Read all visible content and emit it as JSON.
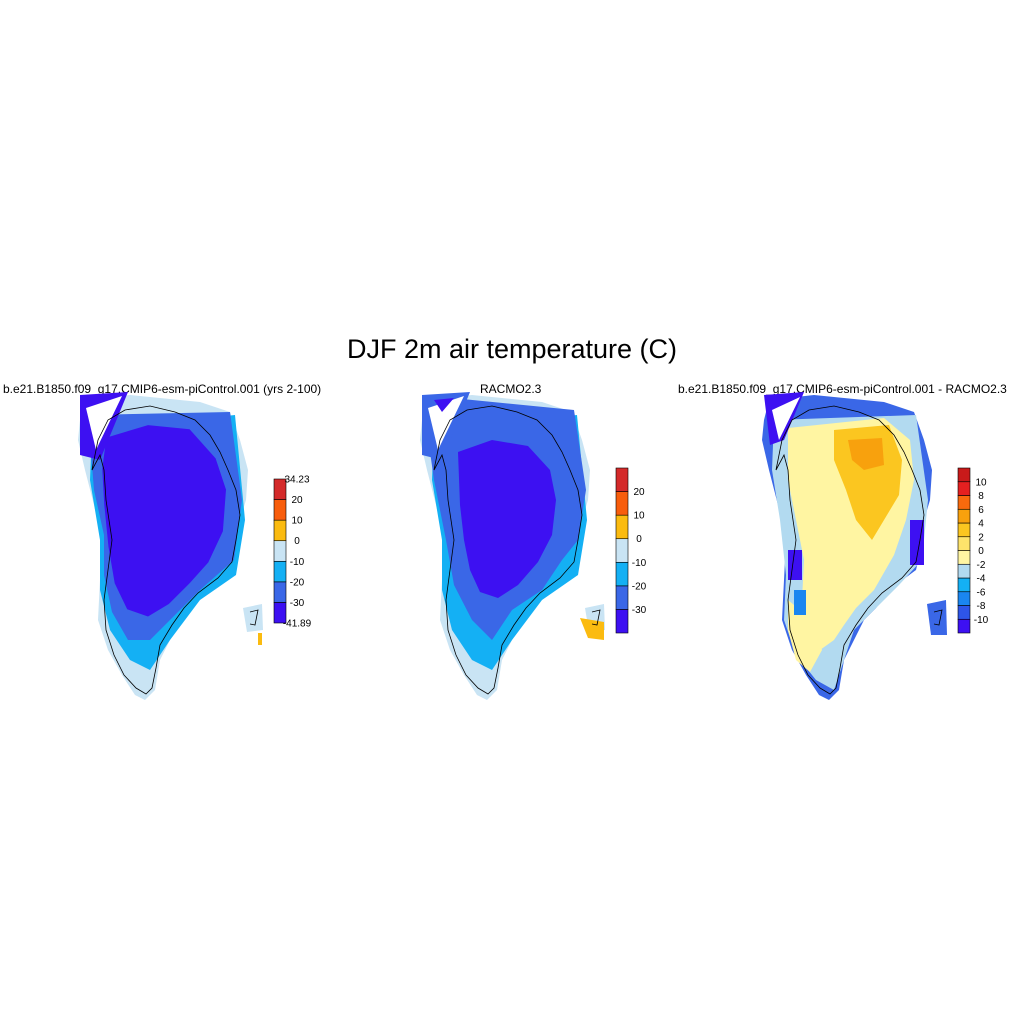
{
  "title": "DJF 2m air temperature (C)",
  "panels": [
    {
      "id": "model",
      "title": "b.e21.B1850.f09_g17.CMIP6-esm-piControl.001 (yrs 2-100)",
      "colorbar": {
        "colors": [
          "#3d10f2",
          "#3a67e7",
          "#14b0f4",
          "#c9e4f4",
          "#fbbb10",
          "#f85d0c",
          "#d42a2a"
        ],
        "labels": [
          "-41.89",
          "-30",
          "-20",
          "-10",
          "0",
          "10",
          "20",
          "34.23"
        ],
        "label_type": "edges"
      }
    },
    {
      "id": "racmo",
      "title": "RACMO2.3",
      "colorbar": {
        "colors": [
          "#3d10f2",
          "#3a67e7",
          "#14b0f4",
          "#c9e4f4",
          "#fbbb10",
          "#f85d0c",
          "#d42a2a"
        ],
        "labels": [
          "-30",
          "-20",
          "-10",
          "0",
          "10",
          "20"
        ],
        "label_type": "interior"
      }
    },
    {
      "id": "diff",
      "title": "b.e21.B1850.f09_g17.CMIP6-esm-piControl.001 - RACMO2.3",
      "colorbar": {
        "colors": [
          "#3d10f2",
          "#2e55e8",
          "#1a86f0",
          "#14b0f4",
          "#b2daf0",
          "#fff5a2",
          "#fde36b",
          "#fbc620",
          "#f8a10d",
          "#f86a0d",
          "#e52020",
          "#c91a1a"
        ],
        "labels": [
          "-10",
          "-8",
          "-6",
          "-4",
          "-2",
          "0",
          "2",
          "4",
          "6",
          "8",
          "10"
        ],
        "label_type": "interior"
      }
    }
  ]
}
